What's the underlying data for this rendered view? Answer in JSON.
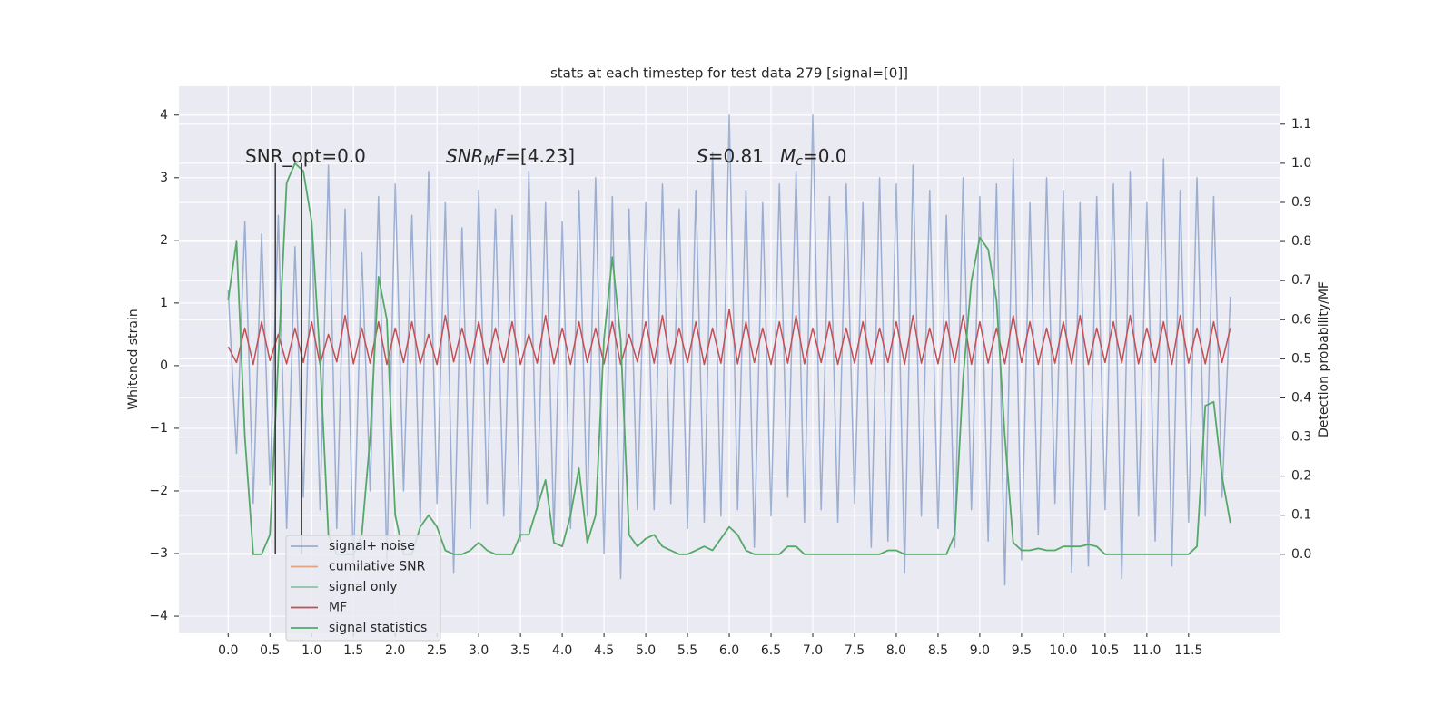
{
  "chart_data": {
    "type": "line",
    "title": "stats at each timestep for test data 279 [signal=[0]]",
    "y_label": "Whitened strain",
    "y2_label": "Detection probability/MF",
    "grid": true,
    "legend": "lower left",
    "xlim": [
      -0.59,
      12.6
    ],
    "ylim": [
      -4.26,
      4.46
    ],
    "y2lim": [
      -0.2,
      1.197
    ],
    "xticks": [
      {
        "value": 0,
        "label": "0.0"
      },
      0.5,
      {
        "value": 1,
        "label": "1.0"
      },
      1.5,
      {
        "value": 2,
        "label": "2.0"
      },
      2.5,
      {
        "value": 3,
        "label": "3.0"
      },
      3.5,
      {
        "value": 4,
        "label": "4.0"
      },
      4.5,
      {
        "value": 5,
        "label": "5.0"
      },
      5.5,
      {
        "value": 6,
        "label": "6.0"
      },
      6.5,
      {
        "value": 7,
        "label": "7.0"
      },
      7.5,
      {
        "value": 8,
        "label": "8.0"
      },
      8.5,
      {
        "value": 9,
        "label": "9.0"
      },
      9.5,
      {
        "value": 10,
        "label": "10.0"
      },
      10.5,
      {
        "value": 11,
        "label": "11.0"
      },
      11.5
    ],
    "yticks": [
      {
        "value": -4,
        "label": "−4"
      },
      {
        "value": -3,
        "label": "−3"
      },
      {
        "value": -2,
        "label": "−2"
      },
      {
        "value": -1,
        "label": "−1"
      },
      0,
      1,
      2,
      3,
      4
    ],
    "y2ticks": [
      {
        "value": 0,
        "label": "0.0"
      },
      0.1,
      0.2,
      0.3,
      0.4,
      0.5,
      0.6,
      0.7,
      0.8,
      0.9,
      {
        "value": 1,
        "label": "1.0"
      },
      1.1
    ],
    "annotations": [
      [
        {
          "text": "SNR_opt=0.0"
        }
      ],
      [
        {
          "text": "SNR",
          "italic": true
        },
        {
          "text": "M",
          "italic": true,
          "sub": true
        },
        {
          "text": "F",
          "italic": true
        },
        {
          "text": "=[4.23]"
        }
      ],
      [
        {
          "text": "S",
          "italic": true
        },
        {
          "text": "=0.81"
        }
      ],
      [
        {
          "text": "M",
          "italic": true
        },
        {
          "text": "c",
          "italic": true,
          "sub": true
        },
        {
          "text": "=0.0"
        }
      ]
    ],
    "vlines": {
      "x": [
        0.565,
        0.88
      ],
      "from": 0,
      "to": 1,
      "axis": "y2",
      "color": "#3a3a3a"
    },
    "x": [
      0.0,
      0.1,
      0.2,
      0.3,
      0.4,
      0.5,
      0.6,
      0.7,
      0.8,
      0.9,
      1.0,
      1.1,
      1.2,
      1.3,
      1.4,
      1.5,
      1.6,
      1.7,
      1.8,
      1.9,
      2.0,
      2.1,
      2.2,
      2.3,
      2.4,
      2.5,
      2.6,
      2.7,
      2.8,
      2.9,
      3.0,
      3.1,
      3.2,
      3.3,
      3.4,
      3.5,
      3.6,
      3.7,
      3.8,
      3.9,
      4.0,
      4.1,
      4.2,
      4.3,
      4.4,
      4.5,
      4.6,
      4.7,
      4.8,
      4.9,
      5.0,
      5.1,
      5.2,
      5.3,
      5.4,
      5.5,
      5.6,
      5.7,
      5.8,
      5.9,
      6.0,
      6.1,
      6.2,
      6.3,
      6.4,
      6.5,
      6.6,
      6.7,
      6.8,
      6.9,
      7.0,
      7.1,
      7.2,
      7.3,
      7.4,
      7.5,
      7.6,
      7.7,
      7.8,
      7.9,
      8.0,
      8.1,
      8.2,
      8.3,
      8.4,
      8.5,
      8.6,
      8.7,
      8.8,
      8.9,
      9.0,
      9.1,
      9.2,
      9.3,
      9.4,
      9.5,
      9.6,
      9.7,
      9.8,
      9.9,
      10.0,
      10.1,
      10.2,
      10.3,
      10.4,
      10.5,
      10.6,
      10.7,
      10.8,
      10.9,
      11.0,
      11.1,
      11.2,
      11.3,
      11.4,
      11.5,
      11.6,
      11.7,
      11.8,
      11.9,
      12.0
    ],
    "series": [
      {
        "name": "signal+ noise",
        "color": "#4c72b0",
        "alpha": 0.5,
        "values": [
          1.2,
          -1.4,
          2.3,
          -2.2,
          2.1,
          -1.9,
          2.4,
          -2.6,
          1.9,
          -2.1,
          2.2,
          -2.3,
          3.2,
          -2.6,
          2.5,
          -3.2,
          1.8,
          -2.0,
          2.7,
          -3.2,
          2.9,
          -2.0,
          2.4,
          -2.5,
          3.1,
          -2.2,
          2.6,
          -3.3,
          2.2,
          -2.6,
          2.8,
          -2.2,
          2.5,
          -2.4,
          2.4,
          -2.8,
          3.1,
          -2.3,
          2.6,
          -2.7,
          2.3,
          -2.6,
          2.8,
          -2.4,
          3.0,
          -3.0,
          2.7,
          -3.4,
          2.5,
          -2.3,
          2.6,
          -2.3,
          2.9,
          -2.2,
          2.5,
          -2.6,
          2.8,
          -2.5,
          3.4,
          -2.4,
          4.0,
          -2.3,
          2.8,
          -2.9,
          2.6,
          -2.4,
          2.9,
          -2.1,
          3.1,
          -2.5,
          4.0,
          -2.3,
          2.7,
          -2.5,
          2.9,
          -2.2,
          2.6,
          -2.9,
          3.0,
          -2.8,
          2.9,
          -3.3,
          3.2,
          -2.4,
          2.8,
          -2.6,
          2.4,
          -2.9,
          3.0,
          -2.3,
          2.7,
          -2.8,
          2.9,
          -3.5,
          3.3,
          -3.1,
          2.6,
          -2.7,
          3.0,
          -2.2,
          2.8,
          -3.3,
          2.6,
          -3.2,
          2.7,
          -2.3,
          2.9,
          -3.4,
          3.1,
          -2.4,
          2.6,
          -2.8,
          3.3,
          -3.2,
          2.8,
          -2.5,
          3.0,
          -2.4,
          2.7,
          -2.1,
          1.1
        ]
      },
      {
        "name": "cumilative SNR",
        "color": "#dd8452",
        "alpha": 0.7
      },
      {
        "name": "signal only",
        "color": "#55a868",
        "alpha": 0.6
      },
      {
        "name": "MF",
        "color": "#c44e52",
        "alpha": 1,
        "values": [
          0.3,
          0.05,
          0.6,
          0.02,
          0.7,
          0.08,
          0.5,
          0.03,
          0.6,
          0.05,
          0.7,
          0.02,
          0.5,
          0.06,
          0.8,
          0.03,
          0.6,
          0.04,
          0.7,
          0.02,
          0.6,
          0.05,
          0.7,
          0.03,
          0.5,
          0.02,
          0.8,
          0.06,
          0.6,
          0.04,
          0.7,
          0.03,
          0.6,
          0.05,
          0.7,
          0.02,
          0.5,
          0.04,
          0.8,
          0.03,
          0.6,
          0.02,
          0.7,
          0.05,
          0.6,
          0.03,
          0.7,
          0.02,
          0.5,
          0.06,
          0.7,
          0.04,
          0.8,
          0.03,
          0.6,
          0.05,
          0.7,
          0.02,
          0.6,
          0.04,
          0.9,
          0.03,
          0.7,
          0.05,
          0.6,
          0.02,
          0.7,
          0.04,
          0.8,
          0.03,
          0.6,
          0.05,
          0.7,
          0.02,
          0.6,
          0.04,
          0.7,
          0.03,
          0.6,
          0.05,
          0.7,
          0.02,
          0.8,
          0.04,
          0.6,
          0.03,
          0.7,
          0.05,
          0.8,
          0.02,
          0.7,
          0.04,
          0.6,
          0.03,
          0.8,
          0.05,
          0.7,
          0.02,
          0.6,
          0.04,
          0.7,
          0.03,
          0.8,
          0.02,
          0.6,
          0.05,
          0.7,
          0.04,
          0.8,
          0.03,
          0.6,
          0.05,
          0.7,
          0.02,
          0.8,
          0.04,
          0.6,
          0.03,
          0.7,
          0.05,
          0.6
        ]
      },
      {
        "name": "signal statistics",
        "color": "#55a868",
        "alpha": 1,
        "axis": "y2",
        "values": [
          0.65,
          0.8,
          0.3,
          0,
          0,
          0.05,
          0.5,
          0.95,
          1.0,
          0.98,
          0.85,
          0.5,
          0.05,
          0,
          0,
          0,
          0.05,
          0.3,
          0.71,
          0.6,
          0.1,
          0,
          0,
          0.07,
          0.1,
          0.07,
          0.01,
          0,
          0,
          0.01,
          0.03,
          0.01,
          0,
          0,
          0,
          0.05,
          0.05,
          0.12,
          0.19,
          0.03,
          0.02,
          0.1,
          0.22,
          0.03,
          0.1,
          0.55,
          0.76,
          0.55,
          0.05,
          0.02,
          0.04,
          0.05,
          0.02,
          0.01,
          0,
          0,
          0.01,
          0.02,
          0.01,
          0.04,
          0.07,
          0.05,
          0.01,
          0,
          0,
          0,
          0,
          0.02,
          0.02,
          0,
          0,
          0,
          0,
          0,
          0,
          0,
          0,
          0,
          0,
          0.01,
          0.01,
          0,
          0,
          0,
          0,
          0,
          0,
          0.05,
          0.45,
          0.7,
          0.81,
          0.78,
          0.65,
          0.3,
          0.03,
          0.01,
          0.01,
          0.015,
          0.01,
          0.01,
          0.02,
          0.02,
          0.02,
          0.025,
          0.02,
          0,
          0,
          0,
          0,
          0,
          0,
          0,
          0,
          0,
          0,
          0,
          0.02,
          0.38,
          0.39,
          0.2,
          0.08
        ]
      }
    ]
  }
}
